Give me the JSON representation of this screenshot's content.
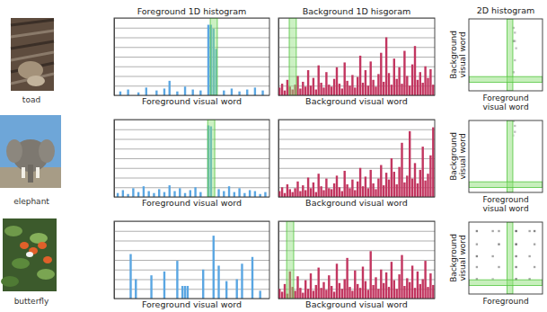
{
  "images": [
    {
      "caption": "toad"
    },
    {
      "caption": "elephant"
    },
    {
      "caption": "butterfly"
    }
  ],
  "chart_data": [
    {
      "type": "bar",
      "title": "Foreground 1D histogram",
      "xlabel": "Foreground visual word",
      "x": [
        2,
        5,
        9,
        12,
        16,
        19,
        21,
        24,
        27,
        30,
        33,
        36,
        37,
        38,
        39,
        42,
        45,
        48,
        51,
        54,
        57
      ],
      "values": [
        0.4,
        0.6,
        0.3,
        0.8,
        0.5,
        0.7,
        1.5,
        0.4,
        0.9,
        0.6,
        0.5,
        7.3,
        7.3,
        6.9,
        4.8,
        0.5,
        0.7,
        0.4,
        0.6,
        0.8,
        0.5
      ],
      "color": "#5aa6e2",
      "xlim": [
        0,
        60
      ],
      "ylim": [
        0,
        8
      ],
      "yticks": [
        0,
        1,
        2,
        3,
        4,
        5,
        6,
        7,
        8
      ],
      "grid": true,
      "tick_labels": false,
      "highlight": 38
    },
    {
      "type": "bar",
      "title": "Background 1D hisgoram",
      "xlabel": "Background visual word",
      "x": [
        0,
        1,
        2,
        3,
        4,
        5,
        6,
        7,
        8,
        9,
        10,
        11,
        12,
        13,
        14,
        15,
        16,
        17,
        18,
        19,
        20,
        21,
        22,
        23,
        24,
        25,
        26,
        27,
        28,
        29,
        30,
        31,
        32,
        33,
        34,
        35,
        36,
        37,
        38,
        39,
        40,
        41,
        42,
        43,
        44,
        45,
        46,
        47,
        48,
        49,
        50,
        51,
        52,
        53,
        54,
        55,
        56,
        57,
        58,
        59
      ],
      "values": [
        0.8,
        1.2,
        0.5,
        1.6,
        0.9,
        0.6,
        1.1,
        2.0,
        0.7,
        1.4,
        0.9,
        2.6,
        1.0,
        1.8,
        0.6,
        3.1,
        1.3,
        0.8,
        2.4,
        1.1,
        0.9,
        1.7,
        2.9,
        1.2,
        0.7,
        3.4,
        1.5,
        1.0,
        2.1,
        0.8,
        1.9,
        4.1,
        1.3,
        2.6,
        1.0,
        3.5,
        1.6,
        0.9,
        2.2,
        4.4,
        1.4,
        6.0,
        2.3,
        1.1,
        3.8,
        1.7,
        2.9,
        1.2,
        4.6,
        2.0,
        1.0,
        3.2,
        5.1,
        1.6,
        2.4,
        1.3,
        3.0,
        1.8,
        2.7,
        1.1
      ],
      "color": "#c23660",
      "xlim": [
        0,
        60
      ],
      "ylim": [
        0,
        8
      ],
      "yticks": [
        0,
        1,
        2,
        3,
        4,
        5,
        6,
        7,
        8
      ],
      "grid": true,
      "tick_labels": false,
      "highlight": 5
    },
    {
      "type": "heatmap",
      "title": "2D histogram",
      "xlabel": "Foreground visual word",
      "ylabel": "Background visual word",
      "xlim": [
        0,
        60
      ],
      "ylim": [
        0,
        60
      ],
      "clim": [
        0,
        6
      ],
      "tick_labels": false,
      "cells": [
        [
          36,
          52,
          2
        ],
        [
          37,
          41,
          2
        ],
        [
          36,
          41,
          3
        ],
        [
          38,
          35,
          2
        ],
        [
          37,
          25,
          2
        ],
        [
          36,
          15,
          2
        ],
        [
          37,
          48,
          2
        ]
      ],
      "highlight_x": 33,
      "highlight_y": 9
    },
    {
      "type": "bar",
      "xlabel": "Foreground visual word",
      "x": [
        1,
        3,
        5,
        7,
        9,
        11,
        13,
        15,
        17,
        19,
        21,
        23,
        25,
        27,
        29,
        31,
        33,
        36,
        37,
        40,
        42,
        44,
        46,
        48,
        50,
        52,
        54,
        56,
        58
      ],
      "values": [
        0.4,
        0.7,
        0.3,
        0.9,
        0.5,
        1.1,
        0.6,
        0.4,
        0.8,
        0.5,
        1.2,
        0.6,
        0.9,
        0.4,
        0.7,
        1.0,
        0.5,
        7.4,
        7.3,
        0.8,
        0.6,
        1.1,
        0.5,
        0.9,
        0.4,
        0.7,
        0.6,
        0.3,
        0.5
      ],
      "color": "#5aa6e2",
      "xlim": [
        0,
        60
      ],
      "ylim": [
        0,
        8
      ],
      "yticks": [
        0,
        1,
        2,
        3,
        4,
        5,
        6,
        7,
        8
      ],
      "grid": true,
      "tick_labels": false,
      "highlight": 37
    },
    {
      "type": "bar",
      "xlabel": "Background visual word",
      "x": [
        0,
        1,
        2,
        3,
        4,
        5,
        6,
        7,
        8,
        9,
        10,
        11,
        12,
        13,
        14,
        15,
        16,
        17,
        18,
        19,
        20,
        21,
        22,
        23,
        24,
        25,
        26,
        27,
        28,
        29,
        30,
        31,
        32,
        33,
        34,
        35,
        36,
        37,
        38,
        39,
        40,
        41,
        42,
        43,
        44,
        45,
        46,
        47,
        48,
        49,
        50,
        51,
        52,
        53,
        54,
        55,
        56,
        57,
        58,
        59
      ],
      "values": [
        0.6,
        1.0,
        0.4,
        1.3,
        0.8,
        0.5,
        0.9,
        1.6,
        0.6,
        1.2,
        0.7,
        2.0,
        0.9,
        1.5,
        0.5,
        2.4,
        1.1,
        0.7,
        1.9,
        0.9,
        0.8,
        1.4,
        2.2,
        1.0,
        0.6,
        2.7,
        1.3,
        0.9,
        1.8,
        0.7,
        1.6,
        3.0,
        1.1,
        2.1,
        0.9,
        2.8,
        1.4,
        0.8,
        1.9,
        3.3,
        1.2,
        2.5,
        1.8,
        4.0,
        2.6,
        1.3,
        3.1,
        5.6,
        1.5,
        2.2,
        6.8,
        1.9,
        3.5,
        1.4,
        2.8,
        5.2,
        1.7,
        2.4,
        4.3,
        7.2
      ],
      "color": "#c23660",
      "xlim": [
        0,
        60
      ],
      "ylim": [
        0,
        8
      ],
      "yticks": [
        0,
        1,
        2,
        3,
        4,
        5,
        6,
        7,
        8
      ],
      "grid": true,
      "tick_labels": false
    },
    {
      "type": "heatmap",
      "xlabel": "Foreground visual word",
      "ylabel": "Background visual word",
      "xlim": [
        0,
        60
      ],
      "ylim": [
        0,
        60
      ],
      "clim": [
        0,
        6
      ],
      "tick_labels": false,
      "cells": [
        [
          36,
          59,
          2
        ],
        [
          37,
          50,
          2
        ],
        [
          36,
          47,
          1
        ],
        [
          37,
          55,
          2
        ]
      ],
      "highlight_x": 33,
      "highlight_y": 6
    },
    {
      "type": "bar",
      "xlabel": "Foreground visual word",
      "x": [
        6,
        8,
        14,
        19,
        24,
        26,
        27,
        28,
        34,
        38,
        40,
        43,
        47,
        49,
        53,
        56
      ],
      "values": [
        4.6,
        2.0,
        2.4,
        2.8,
        3.9,
        1.3,
        1.3,
        1.3,
        3.0,
        6.5,
        3.4,
        1.8,
        2.0,
        3.6,
        4.3,
        0.8
      ],
      "color": "#5aa6e2",
      "xlim": [
        0,
        60
      ],
      "ylim": [
        0,
        8
      ],
      "yticks": [
        0,
        1,
        2,
        3,
        4,
        5,
        6,
        7,
        8
      ],
      "grid": true,
      "tick_labels": false
    },
    {
      "type": "bar",
      "xlabel": "Background visual word",
      "x": [
        0,
        1,
        2,
        3,
        4,
        5,
        6,
        7,
        8,
        9,
        10,
        11,
        12,
        13,
        14,
        15,
        16,
        17,
        18,
        19,
        20,
        21,
        22,
        23,
        24,
        25,
        26,
        27,
        28,
        29,
        30,
        31,
        32,
        33,
        34,
        35,
        36,
        37,
        38,
        39,
        40,
        41,
        42,
        43,
        44,
        45,
        46,
        47,
        48,
        49,
        50,
        51,
        52,
        53,
        54,
        55,
        56,
        57,
        58,
        59
      ],
      "values": [
        1.0,
        0.7,
        1.5,
        0.5,
        2.8,
        1.2,
        0.8,
        2.3,
        1.1,
        0.6,
        1.9,
        1.0,
        2.6,
        0.8,
        1.4,
        3.2,
        1.1,
        1.7,
        0.9,
        2.4,
        1.3,
        0.7,
        3.6,
        1.6,
        1.0,
        2.0,
        4.2,
        1.2,
        0.8,
        2.9,
        1.5,
        1.1,
        3.3,
        1.8,
        0.9,
        4.9,
        1.4,
        2.2,
        1.0,
        3.0,
        1.6,
        2.7,
        1.2,
        3.8,
        1.9,
        1.0,
        2.5,
        4.5,
        1.3,
        2.1,
        1.7,
        3.4,
        1.1,
        2.8,
        1.5,
        2.0,
        3.9,
        1.2,
        2.6,
        1.4
      ],
      "color": "#c23660",
      "xlim": [
        0,
        60
      ],
      "ylim": [
        0,
        8
      ],
      "yticks": [
        0,
        1,
        2,
        3,
        4,
        5,
        6,
        7,
        8
      ],
      "grid": true,
      "tick_labels": false,
      "highlight": 4
    },
    {
      "type": "heatmap",
      "xlabel": "Foreground",
      "ylabel": "Background visual word",
      "xlim": [
        0,
        60
      ],
      "ylim": [
        0,
        60
      ],
      "clim": [
        0,
        6
      ],
      "tick_labels": false,
      "cells": [
        [
          6,
          52,
          4
        ],
        [
          19,
          52,
          3
        ],
        [
          24,
          52,
          3
        ],
        [
          38,
          52,
          5
        ],
        [
          49,
          52,
          3
        ],
        [
          53,
          52,
          4
        ],
        [
          6,
          41,
          3
        ],
        [
          24,
          41,
          4
        ],
        [
          38,
          41,
          5
        ],
        [
          53,
          41,
          3
        ],
        [
          6,
          31,
          4
        ],
        [
          19,
          31,
          3
        ],
        [
          38,
          31,
          4
        ],
        [
          49,
          31,
          3
        ],
        [
          6,
          22,
          3
        ],
        [
          24,
          22,
          3
        ],
        [
          38,
          22,
          4
        ],
        [
          53,
          22,
          3
        ],
        [
          6,
          12,
          3
        ],
        [
          19,
          12,
          2
        ],
        [
          38,
          12,
          4
        ],
        [
          49,
          12,
          3
        ]
      ],
      "highlight_x": 33,
      "highlight_y": 9
    }
  ]
}
